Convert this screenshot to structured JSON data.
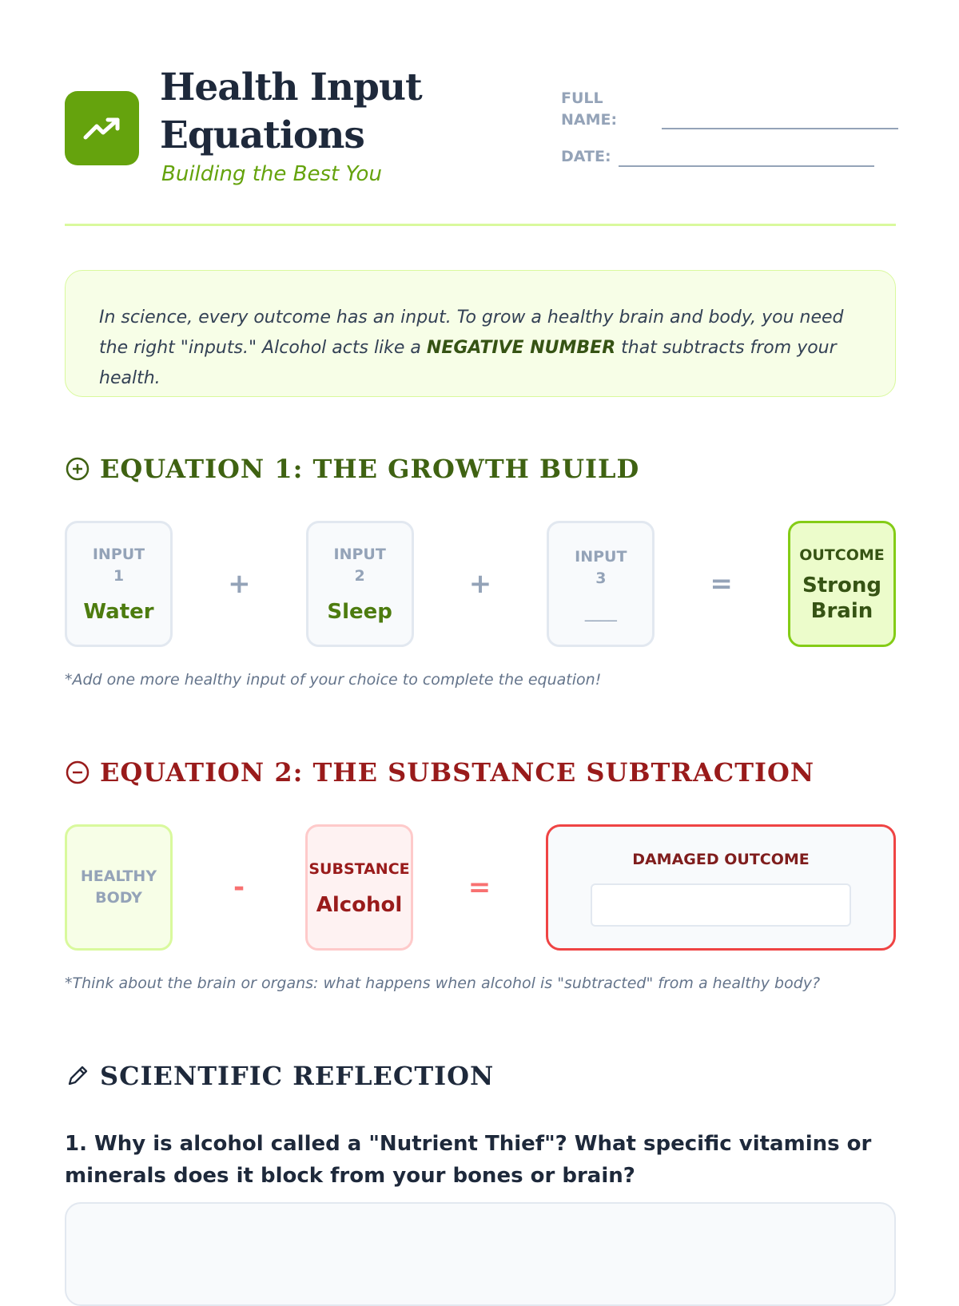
{
  "header": {
    "title_line1": "Health Input",
    "title_line2": "Equations",
    "subtitle": "Building the Best You",
    "logo_icon": "trending-up-icon",
    "brand_color": "#65a30d"
  },
  "form": {
    "full_name_label_1": "FULL",
    "full_name_label_2": "NAME:",
    "date_label": "DATE:",
    "full_name_value": "",
    "date_value": ""
  },
  "intro": {
    "text_before": "In science, every outcome has an input. To grow a healthy brain and body, you need the right \"inputs.\" Alcohol acts like a ",
    "emphasis": "NEGATIVE NUMBER",
    "text_after": " that subtracts from your health."
  },
  "equation1": {
    "heading": "EQUATION 1: THE GROWTH BUILD",
    "icon": "plus-circle-icon",
    "inputs": [
      {
        "label1": "INPUT",
        "label2": "1",
        "value": "Water"
      },
      {
        "label1": "INPUT",
        "label2": "2",
        "value": "Sleep"
      },
      {
        "label1": "INPUT",
        "label2": "3",
        "value": "____"
      }
    ],
    "plus": "+",
    "equals": "=",
    "outcome_label": "OUTCOME",
    "outcome_line1": "Strong",
    "outcome_line2": "Brain",
    "note": "*Add one more healthy input of your choice to complete the equation!"
  },
  "equation2": {
    "heading": "EQUATION 2: THE SUBSTANCE SUBTRACTION",
    "icon": "minus-circle-icon",
    "healthy_line1": "HEALTHY",
    "healthy_line2": "BODY",
    "minus": "-",
    "substance_label": "SUBSTANCE",
    "substance_value": "Alcohol",
    "equals": "=",
    "damaged_label": "DAMAGED OUTCOME",
    "damaged_value": "",
    "note": "*Think about the brain or organs: what happens when alcohol is \"subtracted\" from a healthy body?"
  },
  "reflection": {
    "heading": "SCIENTIFIC REFLECTION",
    "icon": "pencil-icon",
    "question1": "1. Why is alcohol called a \"Nutrient Thief\"? What specific vitamins or minerals does it block from your bones or brain?",
    "answer1": ""
  }
}
